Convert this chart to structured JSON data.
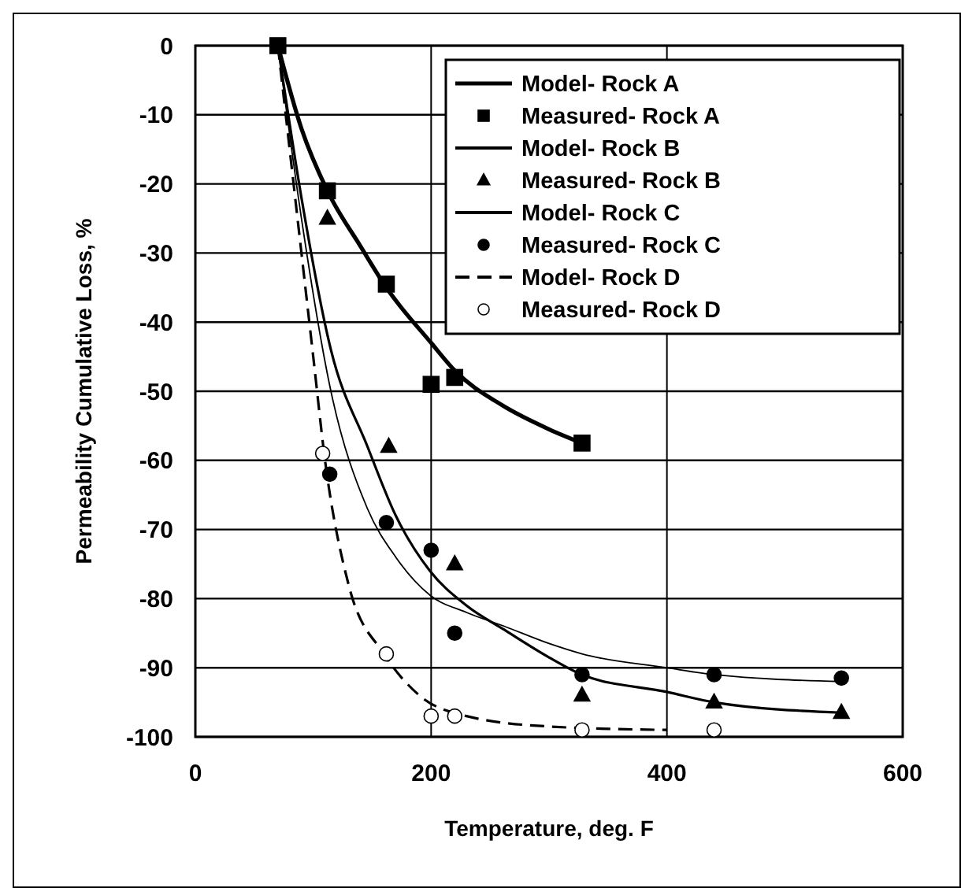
{
  "chart_data": {
    "type": "line",
    "xlabel": "Temperature, deg. F",
    "ylabel": "Permeability Cumulative Loss, %",
    "xlim": [
      0,
      600
    ],
    "xticks": [
      0,
      200,
      400,
      600
    ],
    "ylim": [
      -100,
      0
    ],
    "yticks": [
      -100,
      -90,
      -80,
      -70,
      -60,
      -50,
      -40,
      -30,
      -20,
      -10,
      0
    ],
    "grid": true,
    "legend": "top right",
    "series": [
      {
        "name": "Model- Rock A",
        "color": "#000000",
        "line_style": "solid",
        "marker": "none",
        "x": [
          70,
          90,
          112,
          140,
          162,
          200,
          220,
          260,
          300,
          328
        ],
        "values": [
          0,
          -12,
          -21,
          -29,
          -35,
          -43,
          -47,
          -52,
          -55.5,
          -57.5
        ]
      },
      {
        "name": "Measured- Rock A",
        "type": "scatter",
        "color": "#000000",
        "marker": "square",
        "x": [
          70,
          112,
          162,
          200,
          220,
          328
        ],
        "values": [
          0,
          -21,
          -34.5,
          -49,
          -48,
          -57.5
        ]
      },
      {
        "name": "Model- Rock B",
        "color": "#000000",
        "line_style": "solid",
        "marker": "none",
        "x": [
          70,
          90,
          115,
          146,
          170,
          199,
          230,
          262,
          300,
          328,
          400,
          440,
          548
        ],
        "values": [
          0,
          -25,
          -50,
          -67,
          -74,
          -79.5,
          -82,
          -84,
          -86.5,
          -88,
          -90,
          -91,
          -92
        ]
      },
      {
        "name": "Measured- Rock B",
        "type": "scatter",
        "color": "#000000",
        "marker": "triangle",
        "x": [
          112,
          164,
          220,
          328,
          440,
          548
        ],
        "values": [
          -25,
          -58,
          -75,
          -94,
          -95,
          -96.5
        ]
      },
      {
        "name": "Model- Rock C",
        "color": "#000000",
        "line_style": "solid",
        "marker": "none",
        "x": [
          70,
          90,
          115,
          146,
          170,
          199,
          230,
          262,
          300,
          328,
          400,
          440,
          548
        ],
        "values": [
          0,
          -22,
          -44,
          -58,
          -68,
          -76,
          -81,
          -84.5,
          -88.5,
          -91,
          -93.5,
          -95,
          -96.5
        ]
      },
      {
        "name": "Measured- Rock C",
        "type": "scatter",
        "color": "#000000",
        "marker": "circle",
        "x": [
          114,
          162,
          200,
          220,
          328,
          440,
          548
        ],
        "values": [
          -62,
          -69,
          -73,
          -85,
          -91,
          -91,
          -91.5
        ]
      },
      {
        "name": "Model- Rock D",
        "color": "#000000",
        "line_style": "dashed",
        "marker": "none",
        "x": [
          70,
          90,
          100,
          110,
          130,
          160,
          190,
          230,
          300,
          400
        ],
        "values": [
          0,
          -30,
          -45,
          -60,
          -78,
          -88,
          -94,
          -97,
          -98.5,
          -99
        ]
      },
      {
        "name": "Measured- Rock D",
        "type": "scatter",
        "color": "#ffffff",
        "marker": "circle",
        "x": [
          108,
          162,
          200,
          220,
          328,
          440
        ],
        "values": [
          -59,
          -88,
          -97,
          -97,
          -99,
          -99
        ]
      }
    ]
  }
}
